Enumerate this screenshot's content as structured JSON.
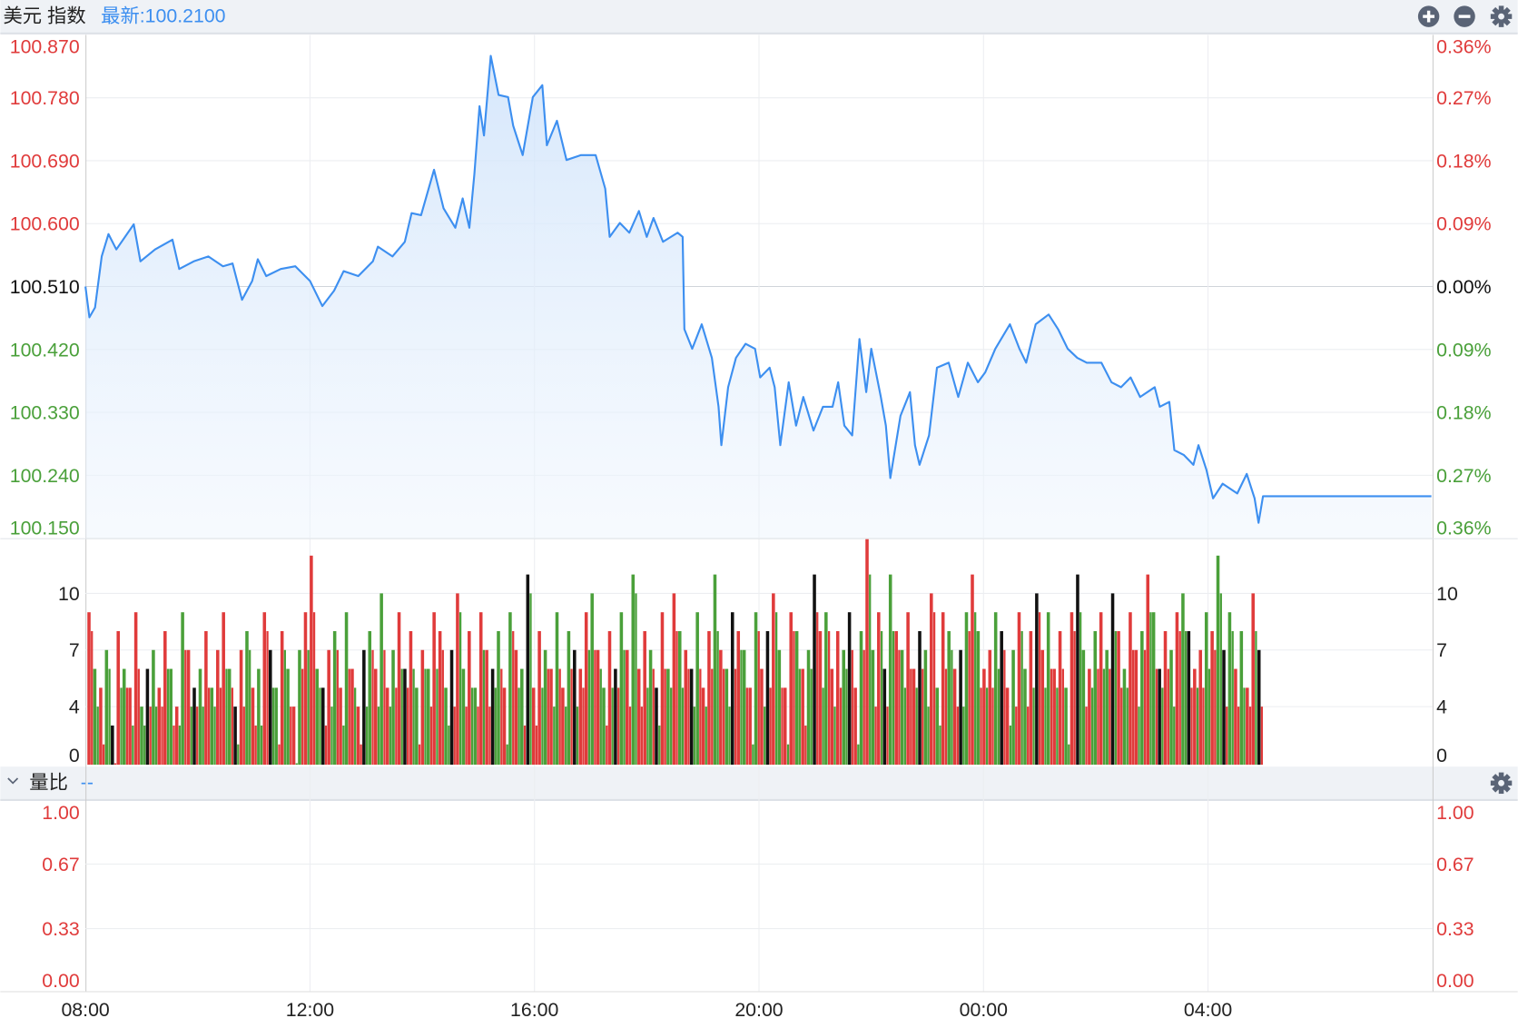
{
  "header": {
    "title": "美元 指数",
    "latest": "最新:100.2100",
    "zoom_in_icon": "plus-circle",
    "zoom_out_icon": "minus-circle",
    "settings_icon": "gear"
  },
  "ratio_header": {
    "title": "量比",
    "value": "--",
    "collapse_icon": "chevron-down",
    "settings_icon": "gear"
  },
  "colors": {
    "up": "#e03b3b",
    "down": "#4aa03a",
    "flat": "#111111",
    "line": "#3d8ff0",
    "accent": "#3d8ff0"
  },
  "chart_data": [
    {
      "type": "line",
      "title": "美元 指数",
      "x_unit": "hours since 08:00",
      "xlim": [
        0,
        24
      ],
      "ylim": [
        100.15,
        100.87
      ],
      "base": 100.51,
      "left_ticks": [
        {
          "label": "100.870",
          "v": 100.87,
          "dir": "up"
        },
        {
          "label": "100.780",
          "v": 100.78,
          "dir": "up"
        },
        {
          "label": "100.690",
          "v": 100.69,
          "dir": "up"
        },
        {
          "label": "100.600",
          "v": 100.6,
          "dir": "up"
        },
        {
          "label": "100.510",
          "v": 100.51,
          "dir": "flat"
        },
        {
          "label": "100.420",
          "v": 100.42,
          "dir": "down"
        },
        {
          "label": "100.330",
          "v": 100.33,
          "dir": "down"
        },
        {
          "label": "100.240",
          "v": 100.24,
          "dir": "down"
        },
        {
          "label": "100.150",
          "v": 100.15,
          "dir": "down"
        }
      ],
      "right_ticks": [
        "0.36%",
        "0.27%",
        "0.18%",
        "0.09%",
        "0.00%",
        "0.09%",
        "0.18%",
        "0.27%",
        "0.36%"
      ],
      "x_ticks": [
        {
          "label": "08:00",
          "h": 0
        },
        {
          "label": "12:00",
          "h": 4
        },
        {
          "label": "16:00",
          "h": 8
        },
        {
          "label": "20:00",
          "h": 12
        },
        {
          "label": "00:00",
          "h": 16
        },
        {
          "label": "04:00",
          "h": 20
        }
      ],
      "points": [
        [
          0,
          100.51
        ],
        [
          0.07,
          100.466
        ],
        [
          0.17,
          100.48
        ],
        [
          0.29,
          100.553
        ],
        [
          0.41,
          100.585
        ],
        [
          0.55,
          100.563
        ],
        [
          0.86,
          100.599
        ],
        [
          0.98,
          100.546
        ],
        [
          1.24,
          100.563
        ],
        [
          1.55,
          100.577
        ],
        [
          1.67,
          100.535
        ],
        [
          1.93,
          100.546
        ],
        [
          2.19,
          100.553
        ],
        [
          2.45,
          100.539
        ],
        [
          2.62,
          100.543
        ],
        [
          2.79,
          100.491
        ],
        [
          2.97,
          100.518
        ],
        [
          3.07,
          100.549
        ],
        [
          3.22,
          100.525
        ],
        [
          3.48,
          100.535
        ],
        [
          3.74,
          100.539
        ],
        [
          4.0,
          100.518
        ],
        [
          4.22,
          100.482
        ],
        [
          4.43,
          100.504
        ],
        [
          4.6,
          100.532
        ],
        [
          4.86,
          100.525
        ],
        [
          5.12,
          100.546
        ],
        [
          5.21,
          100.567
        ],
        [
          5.47,
          100.553
        ],
        [
          5.69,
          100.574
        ],
        [
          5.81,
          100.615
        ],
        [
          5.98,
          100.612
        ],
        [
          6.21,
          100.677
        ],
        [
          6.38,
          100.622
        ],
        [
          6.59,
          100.594
        ],
        [
          6.72,
          100.636
        ],
        [
          6.84,
          100.594
        ],
        [
          6.93,
          100.671
        ],
        [
          7.02,
          100.768
        ],
        [
          7.1,
          100.726
        ],
        [
          7.22,
          100.84
        ],
        [
          7.36,
          100.784
        ],
        [
          7.53,
          100.781
        ],
        [
          7.62,
          100.74
        ],
        [
          7.79,
          100.698
        ],
        [
          7.97,
          100.781
        ],
        [
          8.14,
          100.798
        ],
        [
          8.22,
          100.712
        ],
        [
          8.4,
          100.747
        ],
        [
          8.57,
          100.691
        ],
        [
          8.83,
          100.698
        ],
        [
          9.09,
          100.698
        ],
        [
          9.26,
          100.65
        ],
        [
          9.34,
          100.581
        ],
        [
          9.52,
          100.601
        ],
        [
          9.69,
          100.587
        ],
        [
          9.86,
          100.618
        ],
        [
          10.0,
          100.581
        ],
        [
          10.12,
          100.608
        ],
        [
          10.29,
          100.574
        ],
        [
          10.55,
          100.587
        ],
        [
          10.64,
          100.581
        ],
        [
          10.67,
          100.449
        ],
        [
          10.81,
          100.421
        ],
        [
          10.98,
          100.456
        ],
        [
          11.16,
          100.408
        ],
        [
          11.28,
          100.338
        ],
        [
          11.33,
          100.283
        ],
        [
          11.45,
          100.366
        ],
        [
          11.59,
          100.408
        ],
        [
          11.76,
          100.428
        ],
        [
          11.93,
          100.421
        ],
        [
          12.02,
          100.38
        ],
        [
          12.19,
          100.394
        ],
        [
          12.28,
          100.366
        ],
        [
          12.38,
          100.283
        ],
        [
          12.53,
          100.373
        ],
        [
          12.66,
          100.311
        ],
        [
          12.79,
          100.352
        ],
        [
          12.97,
          100.304
        ],
        [
          13.14,
          100.338
        ],
        [
          13.31,
          100.338
        ],
        [
          13.41,
          100.373
        ],
        [
          13.52,
          100.311
        ],
        [
          13.66,
          100.297
        ],
        [
          13.79,
          100.435
        ],
        [
          13.91,
          100.359
        ],
        [
          14.0,
          100.421
        ],
        [
          14.17,
          100.352
        ],
        [
          14.26,
          100.311
        ],
        [
          14.34,
          100.236
        ],
        [
          14.52,
          100.325
        ],
        [
          14.69,
          100.359
        ],
        [
          14.78,
          100.283
        ],
        [
          14.86,
          100.255
        ],
        [
          15.03,
          100.297
        ],
        [
          15.17,
          100.394
        ],
        [
          15.38,
          100.401
        ],
        [
          15.55,
          100.352
        ],
        [
          15.72,
          100.401
        ],
        [
          15.9,
          100.373
        ],
        [
          16.03,
          100.387
        ],
        [
          16.21,
          100.421
        ],
        [
          16.47,
          100.456
        ],
        [
          16.64,
          100.421
        ],
        [
          16.76,
          100.401
        ],
        [
          16.93,
          100.456
        ],
        [
          17.16,
          100.47
        ],
        [
          17.33,
          100.449
        ],
        [
          17.5,
          100.421
        ],
        [
          17.67,
          100.408
        ],
        [
          17.84,
          100.401
        ],
        [
          18.1,
          100.401
        ],
        [
          18.28,
          100.373
        ],
        [
          18.45,
          100.366
        ],
        [
          18.62,
          100.38
        ],
        [
          18.79,
          100.352
        ],
        [
          19.05,
          100.366
        ],
        [
          19.14,
          100.338
        ],
        [
          19.31,
          100.345
        ],
        [
          19.4,
          100.276
        ],
        [
          19.57,
          100.269
        ],
        [
          19.74,
          100.255
        ],
        [
          19.83,
          100.283
        ],
        [
          19.97,
          100.248
        ],
        [
          20.09,
          100.207
        ],
        [
          20.26,
          100.228
        ],
        [
          20.52,
          100.214
        ],
        [
          20.69,
          100.242
        ],
        [
          20.83,
          100.207
        ],
        [
          20.9,
          100.172
        ],
        [
          20.98,
          100.21
        ],
        [
          23.98,
          100.21
        ]
      ],
      "volume": {
        "ylim": [
          0,
          13
        ],
        "ticks": [
          "10",
          "7",
          "4",
          "0"
        ],
        "tick_values": [
          10,
          7,
          4,
          0
        ],
        "values": [
          9,
          6,
          5,
          7,
          3,
          8,
          6,
          5,
          9,
          4,
          6,
          7,
          5,
          8,
          6,
          4,
          9,
          7,
          5,
          6,
          8,
          5,
          7,
          9,
          6,
          4,
          7,
          8,
          5,
          6,
          9,
          7,
          5,
          8,
          6,
          4,
          7,
          9,
          12,
          6,
          5,
          7,
          8,
          5,
          9,
          6,
          4,
          7,
          8,
          6,
          10,
          5,
          7,
          9,
          6,
          8,
          5,
          7,
          6,
          9,
          8,
          5,
          7,
          10,
          6,
          8,
          5,
          9,
          7,
          6,
          8,
          5,
          9,
          7,
          6,
          11,
          5,
          8,
          7,
          6,
          9,
          5,
          8,
          7,
          6,
          9,
          10,
          7,
          5,
          8,
          6,
          9,
          7,
          11,
          6,
          8,
          7,
          5,
          9,
          6,
          10,
          8,
          7,
          6,
          9,
          5,
          8,
          11,
          7,
          6,
          9,
          8,
          7,
          5,
          9,
          6,
          8,
          10,
          7,
          5,
          9,
          8,
          6,
          7,
          11,
          8,
          9,
          6,
          8,
          7,
          9,
          5,
          8,
          13,
          7,
          9,
          6,
          11,
          8,
          7,
          9,
          6,
          8,
          7,
          10,
          5,
          9,
          8,
          6,
          7,
          9,
          11,
          8,
          6,
          7,
          9,
          8,
          5,
          7,
          9,
          6,
          8,
          10,
          7,
          9,
          6,
          8,
          5,
          9,
          11,
          7,
          6,
          8,
          9,
          7,
          10,
          8,
          6,
          9,
          7,
          8,
          11,
          9,
          6,
          8,
          7,
          9,
          10,
          8,
          6,
          7,
          9,
          8,
          12,
          7,
          9,
          6,
          8,
          5,
          10,
          7
        ],
        "colors": "rgrgkrgrrgkgrrgrgrkgrgrrgkrgrgrkgrgrgrrgkrgrgrrkgrgrgrkrgrgrrgkrgrgrrkgrgrgkrrgrgrgkrrgrgrkgrgrrgkrgrgrkgrrgrgkrgrgrkrgrrgrgkrgrrgkrgrgrkgrgrrkgrgrgrkgrgrrgkrgrgrkrgrrgrkgrgrgkrgrrgrgkrgrgkrrgrgkgrgrrk"
      }
    },
    {
      "type": "line",
      "title": "量比",
      "ylim": [
        0,
        1
      ],
      "left_ticks": [
        "1.00",
        "0.67",
        "0.33",
        "0.00"
      ],
      "right_ticks": [
        "1.00",
        "0.67",
        "0.33",
        "0.00"
      ],
      "tick_values": [
        1.0,
        0.67,
        0.33,
        0.0
      ],
      "points": []
    }
  ]
}
